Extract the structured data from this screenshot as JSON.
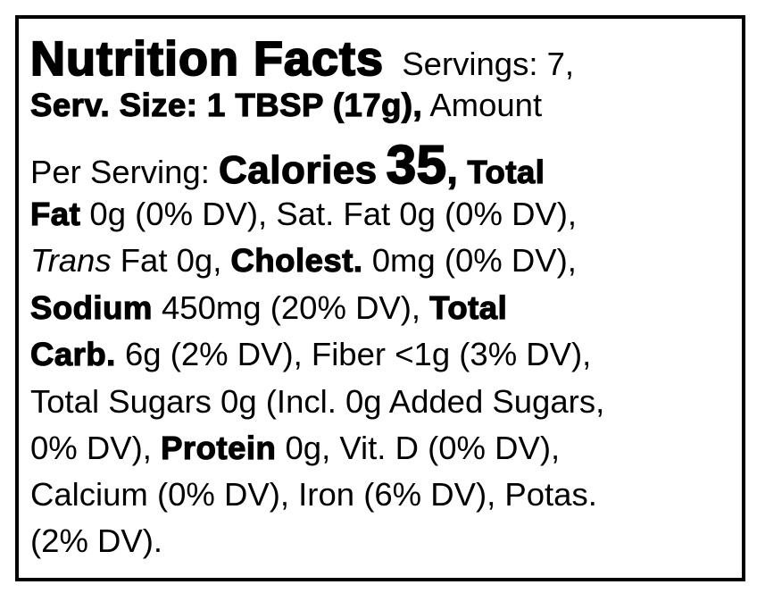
{
  "title": "Nutrition Facts",
  "lines": [
    [
      "Servings: 7,"
    ],
    [
      "Serv. Size: 1 TBSP (17g),",
      "Amount"
    ],
    [
      "Per Serving:",
      "Calories",
      "35",
      ",",
      "Total"
    ],
    [
      "Fat",
      "0g (0% DV), Sat. Fat 0g (0% DV),"
    ],
    [
      "Trans",
      "Fat 0g,",
      "Cholest.",
      "0mg (0% DV),"
    ],
    [
      "Sodium",
      "450mg (20% DV),",
      "Total"
    ],
    [
      "Carb.",
      "6g (2% DV), Fiber <1g (3% DV),"
    ],
    [
      "Total Sugars 0g (Incl. 0g Added Sugars,"
    ],
    [
      "0% DV),",
      "Protein",
      "0g, Vit. D (0% DV),"
    ],
    [
      "Calcium (0% DV), Iron (6% DV), Potas."
    ],
    [
      "(2% DV)."
    ]
  ]
}
